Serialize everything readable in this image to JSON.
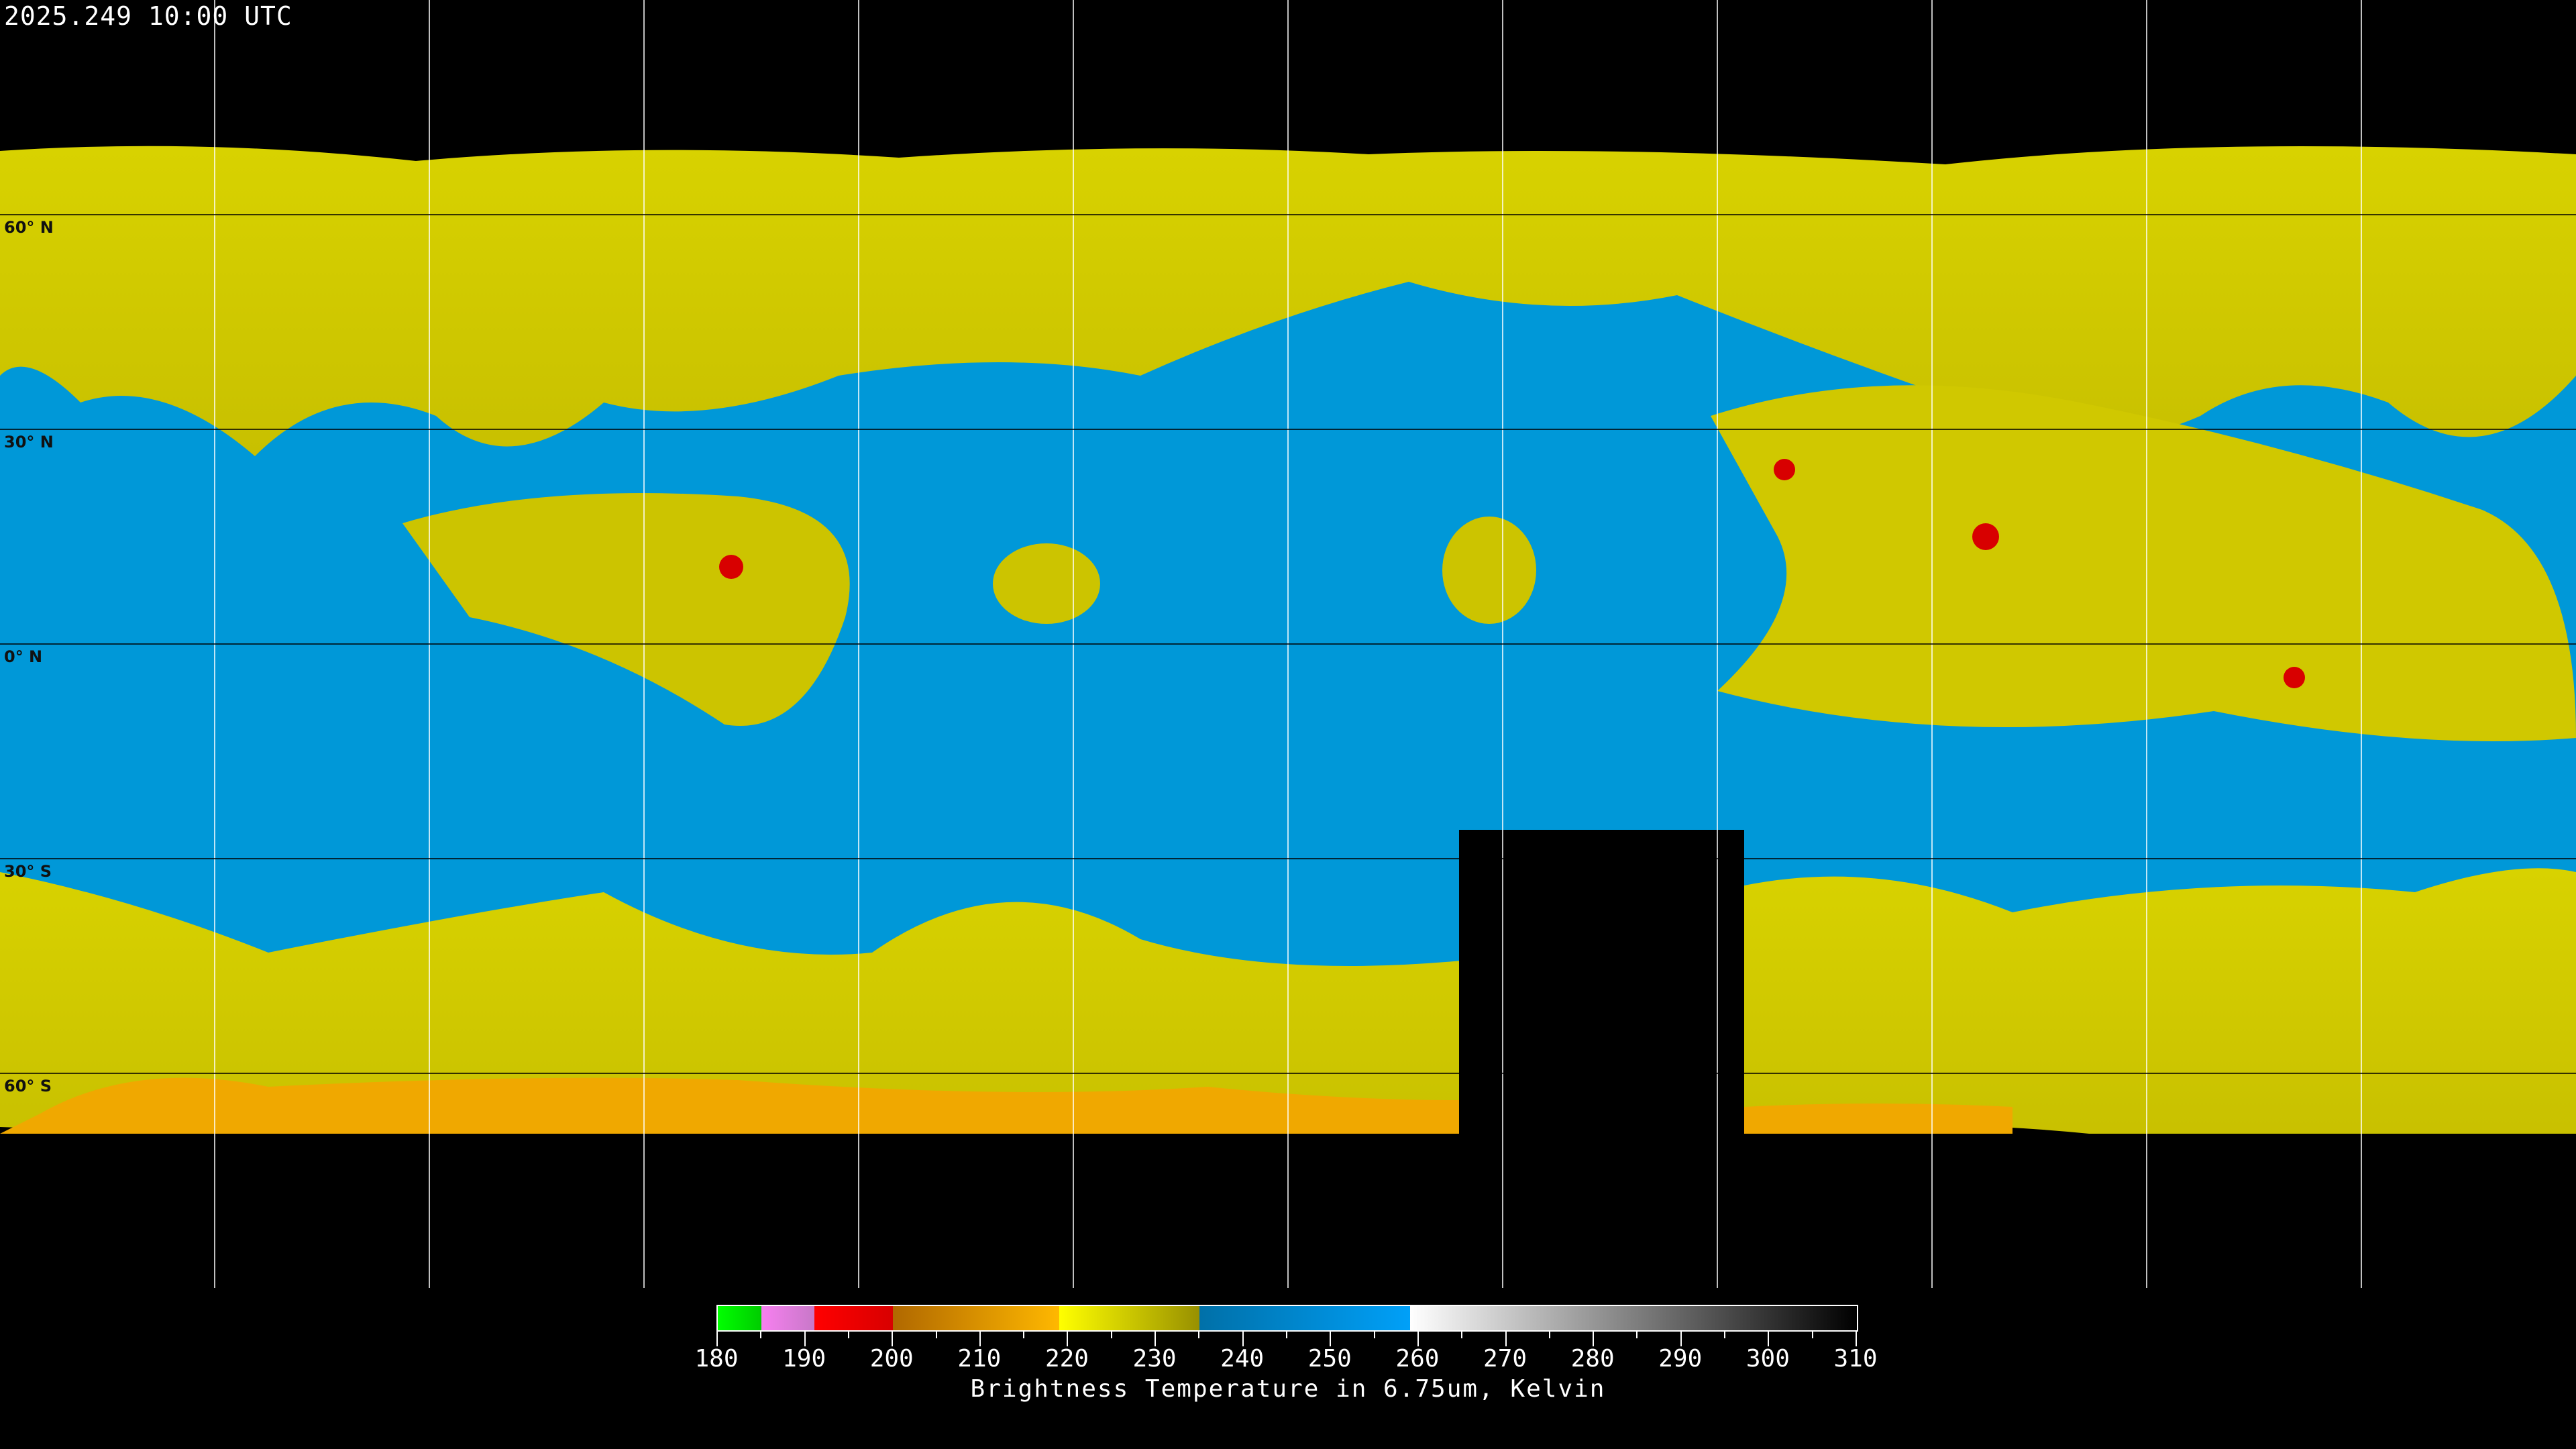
{
  "title": "2025.249 10:00 UTC",
  "lat_labels": [
    "60° N",
    "30° N",
    "0° N",
    "30° S",
    "60° S"
  ],
  "colors": {
    "background": "#000000",
    "high_wv": "#d4cc00",
    "dry": "#0099dd",
    "cold": "#f0a000",
    "very_cold": "#dd0000",
    "missing": "#000000",
    "grid": "#ffffff"
  },
  "colorbar": {
    "min": 180,
    "max": 310,
    "ticks": [
      "180",
      "190",
      "200",
      "210",
      "220",
      "230",
      "240",
      "250",
      "260",
      "270",
      "280",
      "290",
      "300",
      "310"
    ],
    "label": "Brightness Temperature in 6.75um, Kelvin",
    "segments": [
      {
        "from": 180,
        "to": 185,
        "start": "#00ff00",
        "end": "#00cc00"
      },
      {
        "from": 185,
        "to": 191,
        "start": "#f780f0",
        "end": "#c878c8"
      },
      {
        "from": 191,
        "to": 200,
        "start": "#ff0000",
        "end": "#d80000"
      },
      {
        "from": 200,
        "to": 219,
        "start": "#b06800",
        "end": "#ffb800"
      },
      {
        "from": 219,
        "to": 235,
        "start": "#ffff00",
        "end": "#989000"
      },
      {
        "from": 235,
        "to": 259,
        "start": "#0070a8",
        "end": "#00a0f8"
      },
      {
        "from": 259,
        "to": 310,
        "start": "#ffffff",
        "end": "#000000"
      }
    ]
  }
}
